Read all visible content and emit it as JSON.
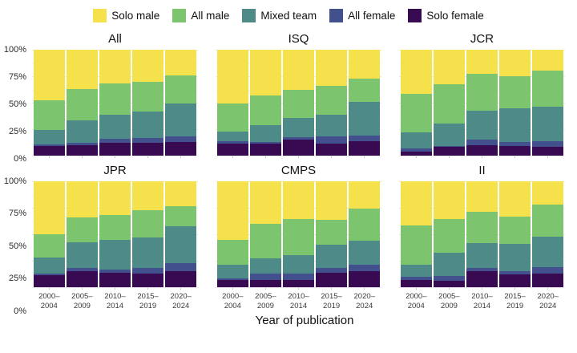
{
  "legend": {
    "items": [
      {
        "label": "Solo male",
        "color": "#F5E14B"
      },
      {
        "label": "All male",
        "color": "#7CC46E"
      },
      {
        "label": "Mixed team",
        "color": "#4D8A88"
      },
      {
        "label": "All female",
        "color": "#42518D"
      },
      {
        "label": "Solo female",
        "color": "#380A52"
      }
    ]
  },
  "axes": {
    "y_ticks": [
      "0%",
      "25%",
      "50%",
      "75%",
      "100%"
    ],
    "x_tick_labels": [
      [
        "2000–",
        "2004"
      ],
      [
        "2005–",
        "2009"
      ],
      [
        "2010–",
        "2014"
      ],
      [
        "2015–",
        "2019"
      ],
      [
        "2020–",
        "2024"
      ]
    ]
  },
  "chart_data": {
    "type": "bar",
    "stacked": true,
    "units": "percent",
    "title": "",
    "xlabel": "Year of publication",
    "ylabel": "",
    "ylim": [
      0,
      100
    ],
    "grid": "major+minor horizontal",
    "legend_position": "top",
    "categories": [
      "2000–2004",
      "2005–2009",
      "2010–2014",
      "2015–2019",
      "2020–2024"
    ],
    "stack_order_bottom_to_top": [
      "Solo female",
      "All female",
      "Mixed team",
      "All male",
      "Solo male"
    ],
    "colors": {
      "Solo male": "#F5E14B",
      "All male": "#7CC46E",
      "Mixed team": "#4D8A88",
      "All female": "#42518D",
      "Solo female": "#380A52"
    },
    "panels": [
      {
        "title": "All",
        "series": {
          "Solo female": [
            9,
            10,
            12,
            12,
            13
          ],
          "All female": [
            2,
            2.5,
            4,
            5,
            5
          ],
          "Mixed team": [
            13,
            20.5,
            23,
            25,
            31
          ],
          "All male": [
            28,
            30,
            29,
            28,
            27
          ],
          "Solo male": [
            48,
            37,
            32,
            30,
            24
          ]
        }
      },
      {
        "title": "ISQ",
        "series": {
          "Solo female": [
            11,
            11,
            15,
            11.5,
            13.5
          ],
          "All female": [
            3,
            2,
            2.5,
            6.5,
            5.5
          ],
          "Mixed team": [
            8.5,
            16,
            18.5,
            21,
            31.5
          ],
          "All male": [
            27,
            28,
            26.5,
            27,
            22.5
          ],
          "Solo male": [
            50.5,
            43,
            37.5,
            34,
            27
          ]
        }
      },
      {
        "title": "JCR",
        "series": {
          "Solo female": [
            4,
            8,
            9.5,
            9,
            8.5
          ],
          "All female": [
            3,
            1,
            5.5,
            4,
            5.5
          ],
          "Mixed team": [
            15,
            21.5,
            27.5,
            31.5,
            32
          ],
          "All male": [
            36,
            37,
            35,
            30.5,
            34
          ],
          "Solo male": [
            42,
            32.5,
            22.5,
            25,
            20
          ]
        }
      },
      {
        "title": "JPR",
        "series": {
          "Solo female": [
            11,
            15,
            14,
            13,
            15
          ],
          "All female": [
            2,
            3.5,
            2.5,
            5,
            8
          ],
          "Mixed team": [
            15,
            24,
            28,
            29,
            34.5
          ],
          "All male": [
            22,
            23.5,
            24,
            26,
            19
          ],
          "Solo male": [
            50,
            34,
            31.5,
            27,
            23.5
          ]
        }
      },
      {
        "title": "CMPS",
        "series": {
          "Solo female": [
            7,
            7,
            6.5,
            13.5,
            15
          ],
          "All female": [
            1,
            6,
            6.5,
            4.5,
            6
          ],
          "Mixed team": [
            13,
            14,
            17,
            22.5,
            23
          ],
          "All male": [
            24,
            33,
            34.5,
            23,
            30
          ],
          "Solo male": [
            55,
            40,
            35.5,
            36.5,
            26
          ]
        }
      },
      {
        "title": "II",
        "series": {
          "Solo female": [
            6.5,
            6,
            15.5,
            12,
            13
          ],
          "All female": [
            3.5,
            5,
            2.5,
            3,
            6
          ],
          "Mixed team": [
            11,
            21.5,
            24,
            26,
            29
          ],
          "All male": [
            37,
            32,
            29,
            26,
            30
          ],
          "Solo male": [
            42,
            35.5,
            29,
            33,
            22
          ]
        }
      }
    ]
  }
}
